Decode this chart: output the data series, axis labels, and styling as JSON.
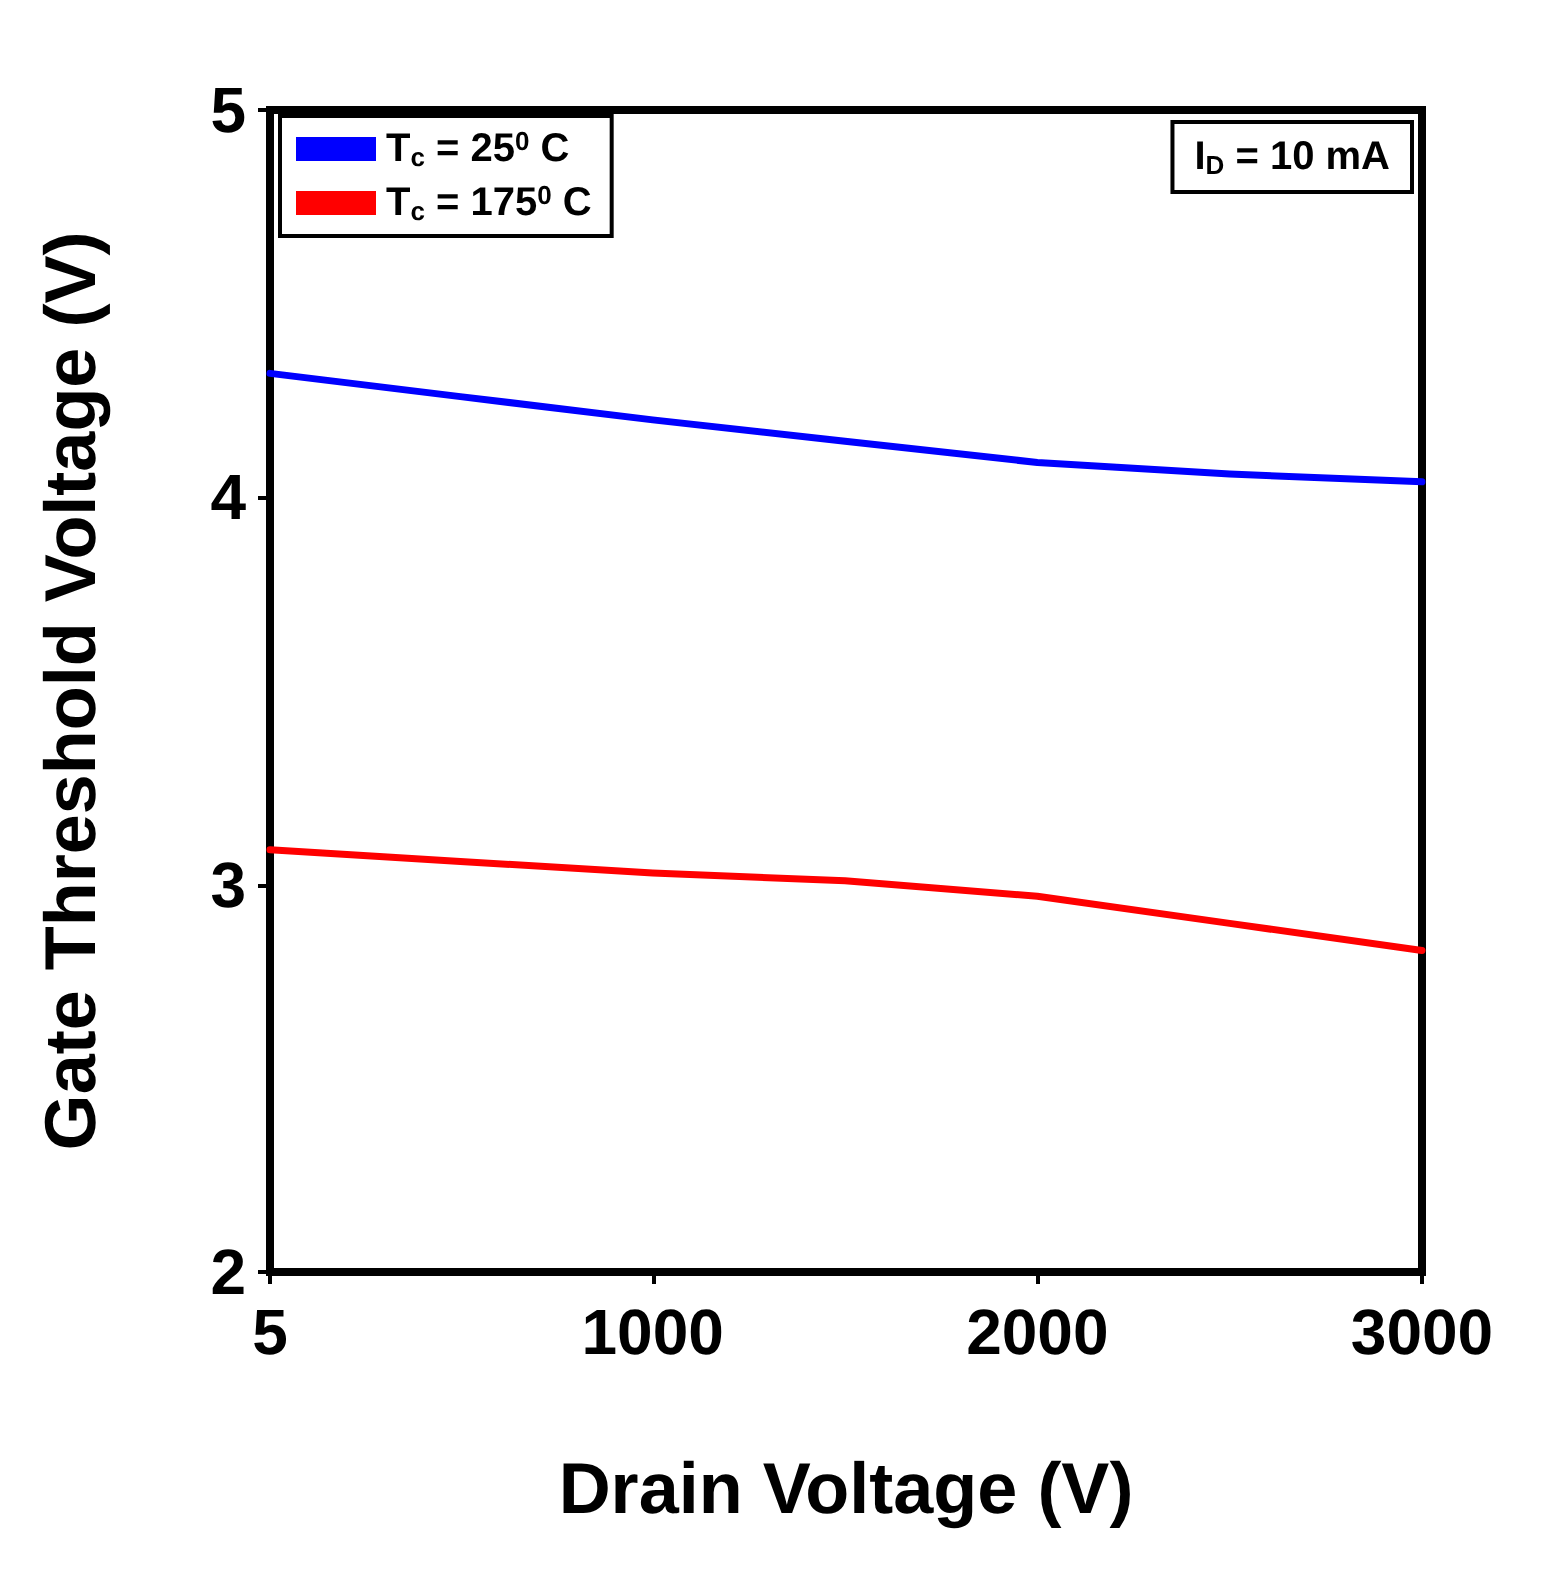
{
  "chart_data": {
    "type": "line",
    "xlabel": "Drain Voltage (V)",
    "ylabel": "Gate Threshold Voltage (V)",
    "x": [
      5,
      500,
      1000,
      1500,
      2000,
      2500,
      3000
    ],
    "series": [
      {
        "name": "T$_{c}$ = 25$^{0}$ C",
        "color": "#0000ff",
        "values": [
          4.32,
          4.26,
          4.2,
          4.145,
          4.09,
          4.06,
          4.04
        ]
      },
      {
        "name": "T$_{c}$ = 175$^{0}$ C",
        "color": "#ff0000",
        "values": [
          3.09,
          3.06,
          3.03,
          3.01,
          2.97,
          2.9,
          2.83
        ]
      }
    ],
    "xlim": [
      5,
      3000
    ],
    "xticks": [
      5,
      1000,
      2000,
      3000
    ],
    "ylim": [
      2,
      5
    ],
    "yticks": [
      2,
      3,
      4,
      5
    ],
    "annotations": [
      "I$_{D}$ = 10 mA"
    ],
    "legend": "top left",
    "grid": false,
    "marker": "none",
    "line_style": "solid"
  }
}
